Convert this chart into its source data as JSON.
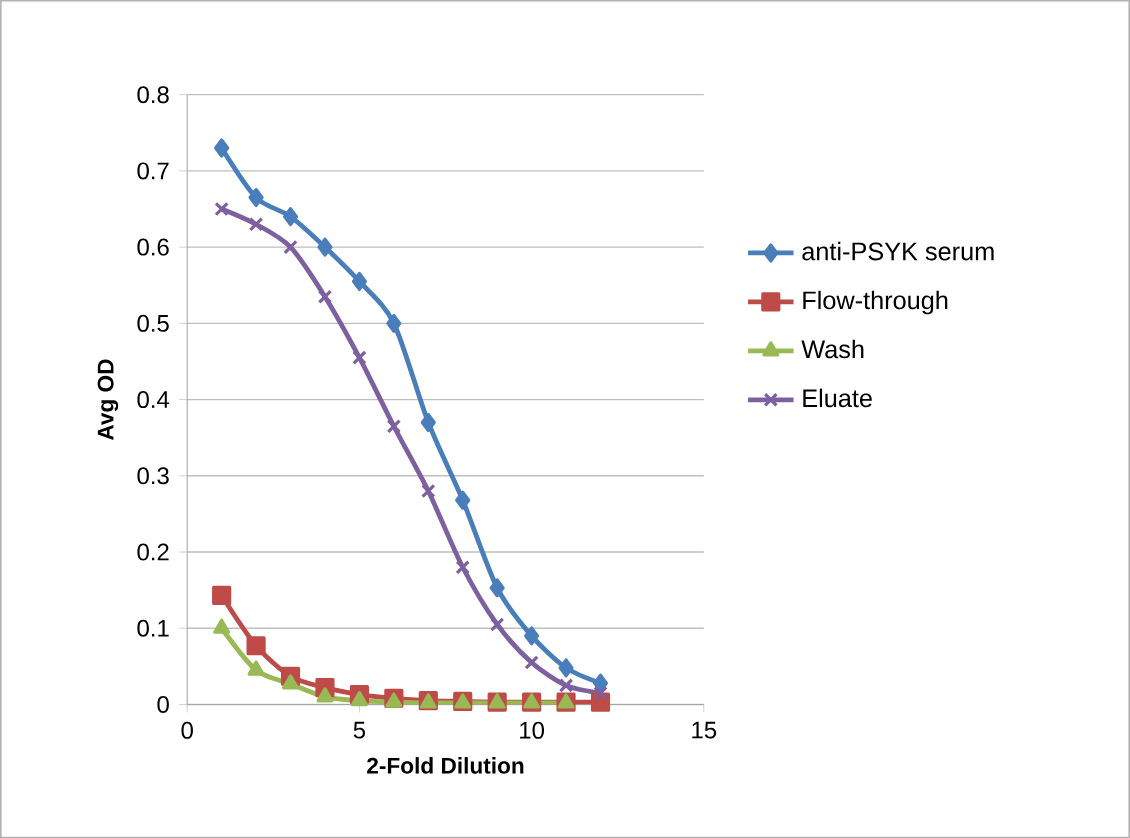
{
  "chart_data": {
    "type": "line",
    "xlabel": "2-Fold Dilution",
    "ylabel": "Avg OD",
    "xlim": [
      0,
      15
    ],
    "xticks": [
      0,
      5,
      10,
      15
    ],
    "ylim": [
      0,
      0.8
    ],
    "yticks": [
      0,
      0.1,
      0.2,
      0.3,
      0.4,
      0.5,
      0.6,
      0.7,
      0.8
    ],
    "grid": "y",
    "legend": "right",
    "series": [
      {
        "name": "anti-PSYK serum",
        "color": "#4a7ebb",
        "marker": "diamond",
        "x": [
          1,
          2,
          3,
          4,
          5,
          6,
          7,
          8,
          9,
          10,
          11,
          12
        ],
        "values": [
          0.73,
          0.665,
          0.64,
          0.6,
          0.555,
          0.5,
          0.37,
          0.268,
          0.153,
          0.09,
          0.048,
          0.028
        ]
      },
      {
        "name": "Flow-through",
        "color": "#be4b48",
        "marker": "square",
        "x": [
          1,
          2,
          3,
          4,
          5,
          6,
          7,
          8,
          9,
          10,
          11,
          12
        ],
        "values": [
          0.143,
          0.077,
          0.037,
          0.022,
          0.013,
          0.008,
          0.005,
          0.004,
          0.003,
          0.003,
          0.003,
          0.003
        ]
      },
      {
        "name": "Wash",
        "color": "#98b954",
        "marker": "triangle",
        "x": [
          1,
          2,
          3,
          4,
          5,
          6,
          7,
          8,
          9,
          10,
          11
        ],
        "values": [
          0.1,
          0.045,
          0.027,
          0.01,
          0.005,
          0.003,
          0.002,
          0.002,
          0.002,
          0.002,
          0.002
        ]
      },
      {
        "name": "Eluate",
        "color": "#7d60a0",
        "marker": "cross",
        "x": [
          1,
          2,
          3,
          4,
          5,
          6,
          7,
          8,
          9,
          10,
          11,
          12
        ],
        "values": [
          0.65,
          0.63,
          0.6,
          0.535,
          0.455,
          0.365,
          0.28,
          0.18,
          0.105,
          0.055,
          0.025,
          0.015
        ]
      }
    ]
  }
}
